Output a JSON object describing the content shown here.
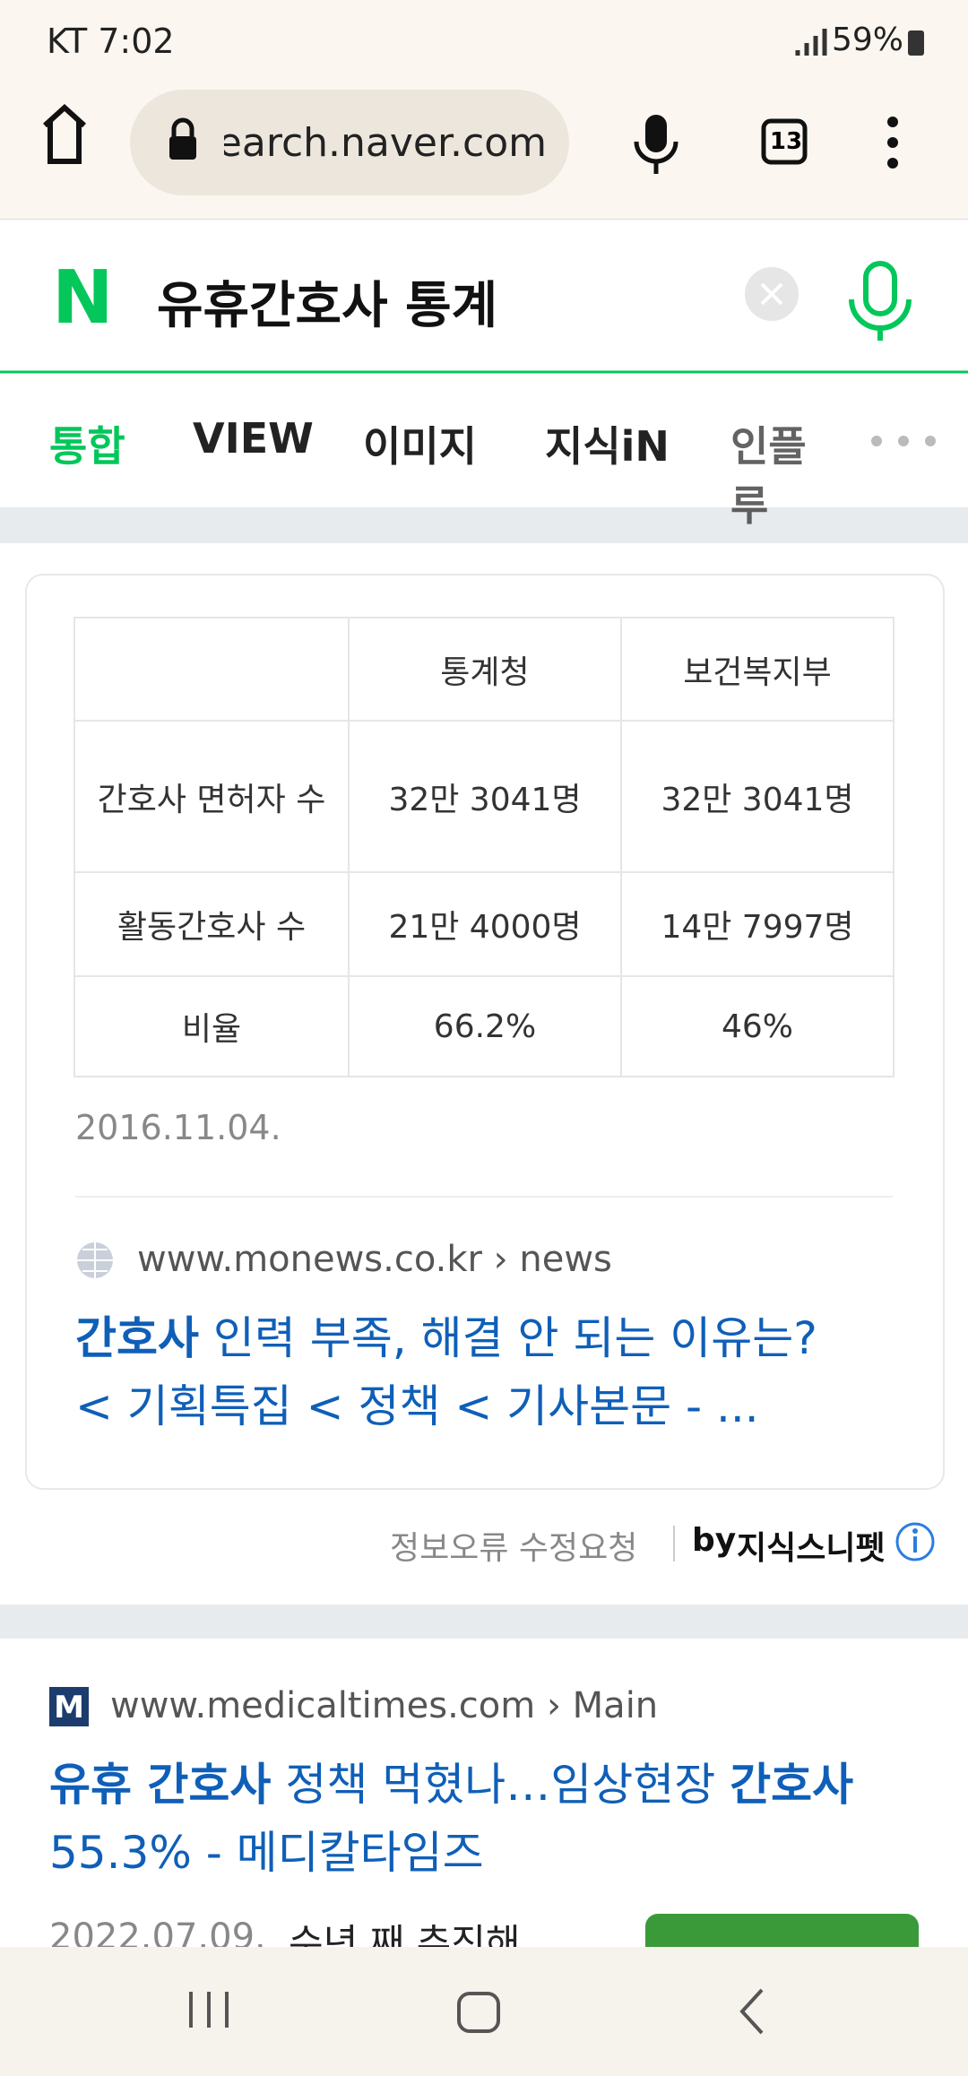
{
  "status_bar": {
    "carrier_time": "KT 7:02",
    "battery": "59%"
  },
  "browser": {
    "url": "search.naver.com",
    "tab_count": "13"
  },
  "search": {
    "logo": "N",
    "query": "유휴간호사 통계"
  },
  "tabs": [
    "통합",
    "VIEW",
    "이미지",
    "지식iN",
    "인플루"
  ],
  "table": {
    "header": [
      "",
      "통계청",
      "보건복지부"
    ],
    "rows": [
      [
        "간호사 면허자 수",
        "32만 3041명",
        "32만 3041명"
      ],
      [
        "활동간호사 수",
        "21만 4000명",
        "14만 7997명"
      ],
      [
        "비율",
        "66.2%",
        "46%"
      ]
    ]
  },
  "card": {
    "date": "2016.11.04.",
    "source": "www.monews.co.kr › news",
    "title": [
      {
        "text": "간호사"
      },
      {
        "text": " 인력 부족, 해결 안 되는 이유는? < 기획특집 < 정책 < 기사본문 - ..."
      }
    ]
  },
  "footer": {
    "report": "정보오류 수정요청",
    "by": "by",
    "snippet": "지식스니펫"
  },
  "result2": {
    "source": "www.medicaltimes.com › Main",
    "title": [
      {
        "text": "유휴 간호사"
      },
      {
        "text": " 정책 먹혔나…임상현장 "
      },
      {
        "text": "간호사"
      },
      {
        "text": " 55.3% - 메디칼타임즈"
      }
    ],
    "date": "2022.07.09.",
    "snippet": "수년 째 추진해"
  }
}
